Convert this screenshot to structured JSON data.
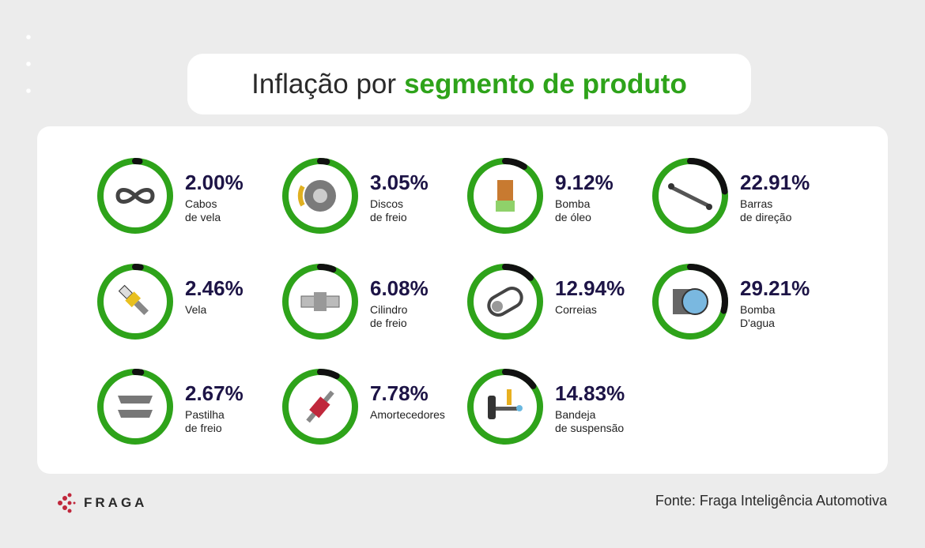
{
  "title": {
    "prefix": "Inflação por",
    "highlight": "segmento de produto"
  },
  "colors": {
    "ring": "#2ea31a",
    "progress": "#111111",
    "value_text": "#1d1446",
    "highlight": "#2ea31a"
  },
  "chart_data": {
    "type": "donut-gauges",
    "title": "Inflação por segmento de produto",
    "unit": "%",
    "items": [
      {
        "label": "Cabos\nde vela",
        "value": 2.0,
        "display": "2.00%",
        "icon": "cable-icon"
      },
      {
        "label": "Discos\nde freio",
        "value": 3.05,
        "display": "3.05%",
        "icon": "brake-disc-icon"
      },
      {
        "label": "Bomba\nde óleo",
        "value": 9.12,
        "display": "9.12%",
        "icon": "oil-pump-icon"
      },
      {
        "label": "Barras\nde direção",
        "value": 22.91,
        "display": "22.91%",
        "icon": "steering-bar-icon"
      },
      {
        "label": "Vela",
        "value": 2.46,
        "display": "2.46%",
        "icon": "spark-plug-icon"
      },
      {
        "label": "Cilindro\nde freio",
        "value": 6.08,
        "display": "6.08%",
        "icon": "brake-cylinder-icon"
      },
      {
        "label": "Correias",
        "value": 12.94,
        "display": "12.94%",
        "icon": "belt-icon"
      },
      {
        "label": "Bomba\nD'agua",
        "value": 29.21,
        "display": "29.21%",
        "icon": "water-pump-icon"
      },
      {
        "label": "Pastilha\nde freio",
        "value": 2.67,
        "display": "2.67%",
        "icon": "brake-pad-icon"
      },
      {
        "label": "Amortecedores",
        "value": 7.78,
        "display": "7.78%",
        "icon": "shock-absorber-icon"
      },
      {
        "label": "Bandeja\nde suspensão",
        "value": 14.83,
        "display": "14.83%",
        "icon": "suspension-arm-icon"
      }
    ]
  },
  "footer": {
    "logo": "FRAGA",
    "source": "Fonte: Fraga Inteligência Automotiva"
  }
}
